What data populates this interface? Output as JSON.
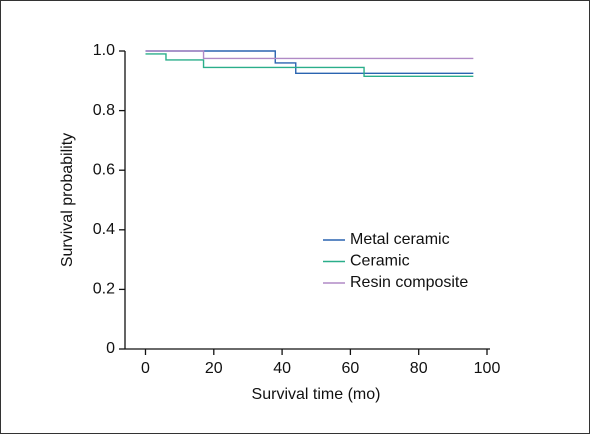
{
  "chart_data": {
    "type": "step",
    "x_label": "Survival time (mo)",
    "y_label": "Survival probability",
    "xlim": [
      -6,
      100
    ],
    "xticks": [
      0,
      20,
      40,
      60,
      80,
      100
    ],
    "ylim": [
      0,
      1
    ],
    "yticks": [
      0,
      0.2,
      0.4,
      0.6,
      0.8,
      {
        "value": 1,
        "label": "1.0"
      }
    ],
    "legend": "center-right",
    "series": [
      {
        "name": "Metal ceramic",
        "color": "#2a64b0",
        "x": [
          0,
          38,
          44,
          96
        ],
        "values": [
          1,
          0.96,
          0.925,
          0.925
        ]
      },
      {
        "name": "Ceramic",
        "color": "#2aae8a",
        "x": [
          0,
          6,
          17,
          64,
          96
        ],
        "values": [
          0.99,
          0.97,
          0.945,
          0.915,
          0.915
        ]
      },
      {
        "name": "Resin composite",
        "color": "#b08ac6",
        "x": [
          0,
          17,
          96
        ],
        "values": [
          1,
          0.975,
          0.975
        ]
      }
    ]
  }
}
